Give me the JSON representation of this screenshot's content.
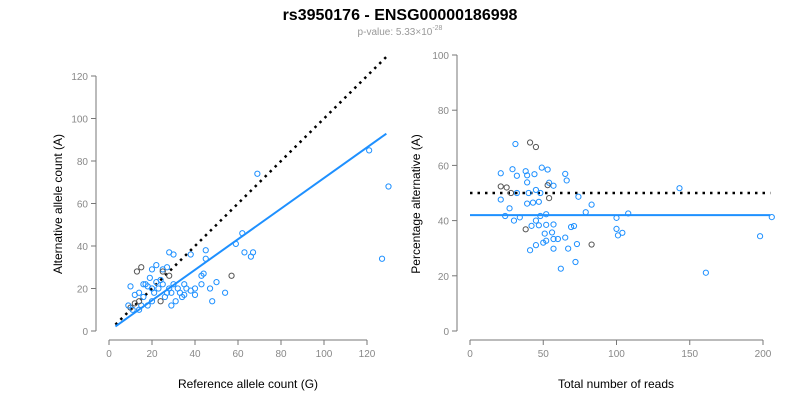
{
  "chart_data": [
    {
      "type": "scatter",
      "title": "rs3950176 - ENSG00000186998",
      "subtitle_prefix": "p-value: 5.33×10",
      "subtitle_exp": "-28",
      "xlabel": "Reference allele count (G)",
      "ylabel": "Alternative allele count (A)",
      "xlim": [
        0,
        130
      ],
      "ylim": [
        0,
        120
      ],
      "xticks": [
        0,
        20,
        40,
        60,
        80,
        100,
        120
      ],
      "yticks": [
        0,
        20,
        40,
        60,
        80,
        100,
        120
      ],
      "reference_line": {
        "style": "dotted",
        "slope": 1,
        "intercept": 0,
        "color": "#000000"
      },
      "fit_line": {
        "slope": 0.72,
        "intercept": 0,
        "color": "#1e90ff"
      },
      "point_color": "#1e90ff",
      "alt_point_color": "#555555",
      "points": [
        [
          121,
          85,
          0
        ],
        [
          130,
          68,
          0
        ],
        [
          127,
          34,
          0
        ],
        [
          69,
          74,
          0
        ],
        [
          62,
          46,
          0
        ],
        [
          59,
          41,
          0
        ],
        [
          63,
          37,
          0
        ],
        [
          66,
          35,
          0
        ],
        [
          67,
          37,
          0
        ],
        [
          45,
          38,
          0
        ],
        [
          45,
          34,
          0
        ],
        [
          50,
          23,
          0
        ],
        [
          43,
          22,
          0
        ],
        [
          38,
          36,
          0
        ],
        [
          30,
          36,
          0
        ],
        [
          28,
          37,
          0
        ],
        [
          54,
          18,
          0
        ],
        [
          44,
          27,
          0
        ],
        [
          35,
          22,
          0
        ],
        [
          36,
          20,
          0
        ],
        [
          40,
          20,
          0
        ],
        [
          25,
          29,
          0
        ],
        [
          27,
          30,
          0
        ],
        [
          22,
          31,
          0
        ],
        [
          15,
          30,
          1
        ],
        [
          13,
          28,
          1
        ],
        [
          20,
          29,
          0
        ],
        [
          17,
          22,
          0
        ],
        [
          16,
          22,
          0
        ],
        [
          18,
          21,
          0
        ],
        [
          10,
          21,
          0
        ],
        [
          12,
          17,
          0
        ],
        [
          14,
          18,
          0
        ],
        [
          19,
          25,
          0
        ],
        [
          22,
          23,
          0
        ],
        [
          25,
          22,
          0
        ],
        [
          23,
          20,
          0
        ],
        [
          28,
          20,
          0
        ],
        [
          30,
          22,
          0
        ],
        [
          32,
          20,
          0
        ],
        [
          33,
          18,
          0
        ],
        [
          34,
          16,
          0
        ],
        [
          38,
          19,
          0
        ],
        [
          26,
          16,
          0
        ],
        [
          24,
          14,
          1
        ],
        [
          20,
          14,
          0
        ],
        [
          18,
          12,
          0
        ],
        [
          15,
          12,
          0
        ],
        [
          12,
          13,
          1
        ],
        [
          10,
          11,
          1
        ],
        [
          11,
          10,
          0
        ],
        [
          9,
          12,
          0
        ],
        [
          14,
          10,
          0
        ],
        [
          16,
          16,
          0
        ],
        [
          21,
          18,
          0
        ],
        [
          29,
          12,
          0
        ],
        [
          31,
          14,
          0
        ],
        [
          35,
          17,
          0
        ],
        [
          40,
          17,
          0
        ],
        [
          47,
          20,
          0
        ],
        [
          48,
          14,
          0
        ],
        [
          57,
          26,
          1
        ],
        [
          43,
          26,
          0
        ],
        [
          20,
          20,
          0
        ],
        [
          24,
          24,
          0
        ],
        [
          27,
          18,
          0
        ],
        [
          29,
          18,
          0
        ],
        [
          25,
          28,
          1
        ],
        [
          28,
          26,
          1
        ],
        [
          14,
          14,
          1
        ]
      ]
    },
    {
      "type": "scatter",
      "xlabel": "Total number of reads",
      "ylabel": "Percentage alternative (A)",
      "xlim": [
        0,
        205
      ],
      "ylim": [
        0,
        100
      ],
      "xticks": [
        0,
        50,
        100,
        150,
        200
      ],
      "yticks": [
        0,
        20,
        40,
        60,
        80,
        100
      ],
      "reference_line": {
        "style": "dotted",
        "y": 50,
        "color": "#000000"
      },
      "fit_line": {
        "y": 42,
        "color": "#1e90ff"
      },
      "derived_from": "left panel points: x = ref+alt, y = 100*alt/(ref+alt)"
    }
  ]
}
